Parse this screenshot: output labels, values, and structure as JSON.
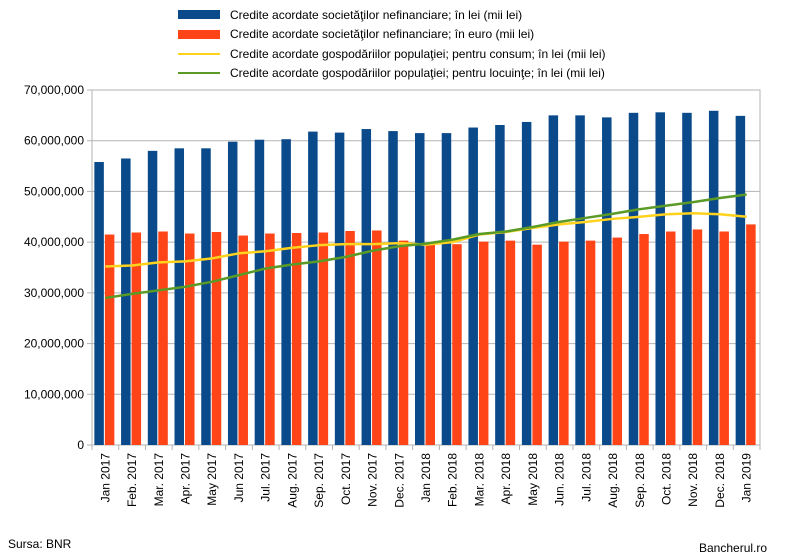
{
  "legend": {
    "items": [
      {
        "label": "Credite acordate societăţilor nefinanciare; în lei (mii lei)",
        "color": "#0a4a8a",
        "kind": "bar"
      },
      {
        "label": "Credite acordate societăţilor nefinanciare; în euro (mii lei)",
        "color": "#ff4418",
        "kind": "bar"
      },
      {
        "label": "Credite acordate gospodăriilor populaţiei; pentru consum; în lei (mii lei)",
        "color": "#ffd21e",
        "kind": "line"
      },
      {
        "label": "Credite acordate gospodăriilor populaţiei; pentru locuinţe; în lei (mii lei)",
        "color": "#5a9a26",
        "kind": "line"
      }
    ]
  },
  "footer": {
    "source": "Sursa: BNR",
    "brand": "Bancherul.ro"
  },
  "chart_data": {
    "type": "bar",
    "categories": [
      "Jan 2017",
      "Feb. 2017",
      "Mar. 2017",
      "Apr. 2017",
      "May 2017",
      "Jun 2017",
      "Jul. 2017",
      "Aug. 2017",
      "Sep. 2017",
      "Oct. 2017",
      "Nov. 2017",
      "Dec. 2017",
      "Jan 2018",
      "Feb. 2018",
      "Mar. 2018",
      "Apr. 2018",
      "May 2018",
      "Jun. 2018",
      "Jul. 2018",
      "Aug. 2018",
      "Sep. 2018",
      "Oct. 2018",
      "Nov. 2018",
      "Dec. 2018",
      "Jan 2019"
    ],
    "ylim": [
      0,
      70000000
    ],
    "yticks": [
      0,
      10000000,
      20000000,
      30000000,
      40000000,
      50000000,
      60000000,
      70000000
    ],
    "ytick_labels": [
      "0",
      "10,000,000",
      "20,000,000",
      "30,000,000",
      "40,000,000",
      "50,000,000",
      "60,000,000",
      "70,000,000"
    ],
    "grid": true,
    "series": [
      {
        "name": "Credite acordate societăţilor nefinanciare; în lei (mii lei)",
        "kind": "bar",
        "color": "#0a4a8a",
        "values": [
          55800000,
          56500000,
          58000000,
          58500000,
          58500000,
          59800000,
          60200000,
          60300000,
          61800000,
          61600000,
          62300000,
          61900000,
          61500000,
          61500000,
          62600000,
          63100000,
          63700000,
          65000000,
          65000000,
          64600000,
          65500000,
          65600000,
          65500000,
          65900000,
          64900000
        ]
      },
      {
        "name": "Credite acordate societăţilor nefinanciare; în euro (mii lei)",
        "kind": "bar",
        "color": "#ff4418",
        "values": [
          41500000,
          41900000,
          42100000,
          41700000,
          42000000,
          41300000,
          41700000,
          41800000,
          41900000,
          42200000,
          42300000,
          40300000,
          39500000,
          39600000,
          40100000,
          40300000,
          39500000,
          40100000,
          40300000,
          40900000,
          41600000,
          42100000,
          42500000,
          42100000,
          43500000
        ]
      },
      {
        "name": "Credite acordate gospodăriilor populaţiei; pentru consum; în lei (mii lei)",
        "kind": "line",
        "color": "#ffd21e",
        "values": [
          35200000,
          35400000,
          36000000,
          36200000,
          36800000,
          37800000,
          38200000,
          38900000,
          39400000,
          39600000,
          39600000,
          39800000,
          39500000,
          40000000,
          41500000,
          42000000,
          42800000,
          43500000,
          44000000,
          44600000,
          45000000,
          45500000,
          45700000,
          45500000,
          45000000
        ]
      },
      {
        "name": "Credite acordate gospodăriilor populaţiei; pentru locuinţe; în lei (mii lei)",
        "kind": "line",
        "color": "#5a9a26",
        "values": [
          29000000,
          29800000,
          30500000,
          31200000,
          32200000,
          33500000,
          34800000,
          35600000,
          36200000,
          37100000,
          38300000,
          39200000,
          39700000,
          40500000,
          41600000,
          42100000,
          43000000,
          44000000,
          44800000,
          45600000,
          46500000,
          47200000,
          47900000,
          48700000,
          49400000
        ]
      }
    ]
  }
}
